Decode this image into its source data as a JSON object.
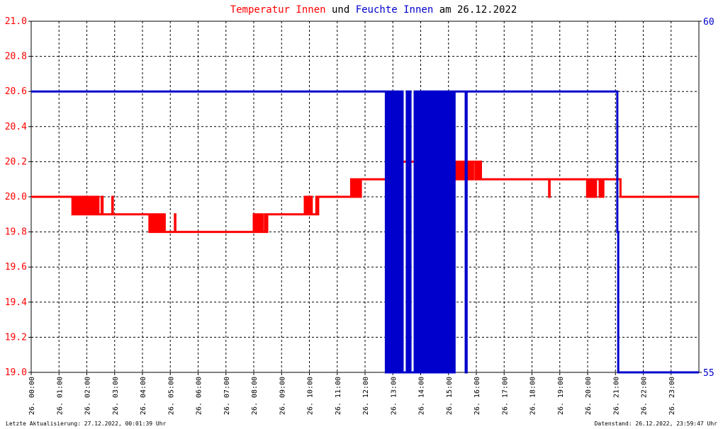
{
  "title": {
    "part1": "Temperatur Innen",
    "part2": "und",
    "part3": "Feuchte Innen",
    "part4": "am 26.12.2022"
  },
  "footer": {
    "left": "Letzte Aktualisierung: 27.12.2022, 00:01:39 Uhr",
    "right": "Datenstand: 26.12.2022, 23:59:47 Uhr"
  },
  "colors": {
    "temperature": "#ff0000",
    "humidity": "#0000cc",
    "background": "#ffffff",
    "grid": "#000000"
  },
  "chart_data": {
    "type": "line",
    "grid": true,
    "x_range": [
      "26.12.2022 00:00",
      "27.12.2022 00:00"
    ],
    "x_tick_labels": [
      "26. 00:00",
      "26. 01:00",
      "26. 02:00",
      "26. 03:00",
      "26. 04:00",
      "26. 05:00",
      "26. 06:00",
      "26. 07:00",
      "26. 08:00",
      "26. 09:00",
      "26. 10:00",
      "26. 11:00",
      "26. 12:00",
      "26. 13:00",
      "26. 14:00",
      "26. 15:00",
      "26. 16:00",
      "26. 17:00",
      "26. 18:00",
      "26. 19:00",
      "26. 20:00",
      "26. 21:00",
      "26. 22:00",
      "26. 23:00"
    ],
    "y_left": {
      "range": [
        19.0,
        21.0
      ],
      "tick_labels": [
        "21.0",
        "20.8",
        "20.6",
        "20.4",
        "20.2",
        "20.0",
        "19.8",
        "19.6",
        "19.4",
        "19.2",
        "19.0"
      ]
    },
    "y_right": {
      "range": [
        55,
        60
      ],
      "tick_labels": [
        "60",
        "55"
      ]
    },
    "series": [
      {
        "name": "Temperatur Innen",
        "axis": "left",
        "points": [
          [
            "00:00",
            20.0
          ],
          [
            "01:28",
            20.0
          ],
          [
            "01:29",
            19.9
          ],
          [
            "01:31",
            20.0
          ],
          [
            "01:33",
            19.9
          ],
          [
            "01:36",
            20.0
          ],
          [
            "01:39",
            19.9
          ],
          [
            "01:42",
            20.0
          ],
          [
            "01:45",
            19.9
          ],
          [
            "01:48",
            20.0
          ],
          [
            "01:51",
            19.9
          ],
          [
            "01:54",
            20.0
          ],
          [
            "01:57",
            19.9
          ],
          [
            "02:00",
            20.0
          ],
          [
            "02:03",
            19.9
          ],
          [
            "02:06",
            20.0
          ],
          [
            "02:09",
            19.9
          ],
          [
            "02:13",
            20.0
          ],
          [
            "02:17",
            19.9
          ],
          [
            "02:21",
            20.0
          ],
          [
            "02:25",
            19.9
          ],
          [
            "02:32",
            20.0
          ],
          [
            "02:34",
            19.9
          ],
          [
            "02:55",
            20.0
          ],
          [
            "02:56",
            19.9
          ],
          [
            "04:13",
            19.9
          ],
          [
            "04:15",
            19.8
          ],
          [
            "04:17",
            19.9
          ],
          [
            "04:19",
            19.8
          ],
          [
            "04:22",
            19.9
          ],
          [
            "04:25",
            19.8
          ],
          [
            "04:28",
            19.9
          ],
          [
            "04:31",
            19.8
          ],
          [
            "04:34",
            19.9
          ],
          [
            "04:37",
            19.8
          ],
          [
            "04:40",
            19.9
          ],
          [
            "04:43",
            19.8
          ],
          [
            "04:46",
            19.9
          ],
          [
            "04:48",
            19.8
          ],
          [
            "05:10",
            19.9
          ],
          [
            "05:11",
            19.8
          ],
          [
            "07:59",
            19.8
          ],
          [
            "08:00",
            19.9
          ],
          [
            "08:02",
            19.8
          ],
          [
            "08:04",
            19.9
          ],
          [
            "08:07",
            19.8
          ],
          [
            "08:10",
            19.9
          ],
          [
            "08:13",
            19.8
          ],
          [
            "08:16",
            19.9
          ],
          [
            "08:19",
            19.8
          ],
          [
            "08:24",
            19.9
          ],
          [
            "08:27",
            19.8
          ],
          [
            "08:29",
            19.9
          ],
          [
            "09:49",
            19.9
          ],
          [
            "09:50",
            20.0
          ],
          [
            "09:52",
            19.9
          ],
          [
            "09:55",
            20.0
          ],
          [
            "09:58",
            19.9
          ],
          [
            "10:01",
            20.0
          ],
          [
            "10:05",
            19.9
          ],
          [
            "10:15",
            20.0
          ],
          [
            "10:17",
            19.9
          ],
          [
            "10:19",
            20.0
          ],
          [
            "11:29",
            20.0
          ],
          [
            "11:30",
            20.1
          ],
          [
            "11:32",
            20.0
          ],
          [
            "11:35",
            20.1
          ],
          [
            "11:38",
            20.0
          ],
          [
            "11:41",
            20.1
          ],
          [
            "11:44",
            20.0
          ],
          [
            "11:47",
            20.1
          ],
          [
            "11:49",
            20.0
          ],
          [
            "11:51",
            20.1
          ],
          [
            "12:48",
            20.1
          ],
          [
            "12:49",
            20.2
          ],
          [
            "12:51",
            20.1
          ],
          [
            "12:54",
            20.2
          ],
          [
            "12:57",
            20.1
          ],
          [
            "13:00",
            20.2
          ],
          [
            "13:03",
            20.1
          ],
          [
            "13:05",
            20.2
          ],
          [
            "15:08",
            20.2
          ],
          [
            "15:09",
            20.1
          ],
          [
            "15:11",
            20.2
          ],
          [
            "15:14",
            20.1
          ],
          [
            "15:17",
            20.2
          ],
          [
            "15:20",
            20.1
          ],
          [
            "15:23",
            20.2
          ],
          [
            "15:26",
            20.1
          ],
          [
            "15:29",
            20.2
          ],
          [
            "15:32",
            20.1
          ],
          [
            "15:35",
            20.2
          ],
          [
            "15:38",
            20.1
          ],
          [
            "15:41",
            20.2
          ],
          [
            "15:44",
            20.1
          ],
          [
            "15:47",
            20.2
          ],
          [
            "15:51",
            20.1
          ],
          [
            "15:53",
            20.2
          ],
          [
            "15:58",
            20.1
          ],
          [
            "16:01",
            20.2
          ],
          [
            "16:04",
            20.1
          ],
          [
            "16:07",
            20.2
          ],
          [
            "16:10",
            20.1
          ],
          [
            "18:36",
            20.1
          ],
          [
            "18:37",
            20.0
          ],
          [
            "18:38",
            20.1
          ],
          [
            "19:58",
            20.1
          ],
          [
            "19:59",
            20.0
          ],
          [
            "20:00",
            20.1
          ],
          [
            "20:03",
            20.0
          ],
          [
            "20:06",
            20.1
          ],
          [
            "20:10",
            20.0
          ],
          [
            "20:13",
            20.1
          ],
          [
            "20:17",
            20.0
          ],
          [
            "20:18",
            20.1
          ],
          [
            "20:26",
            20.0
          ],
          [
            "20:28",
            20.1
          ],
          [
            "20:32",
            20.0
          ],
          [
            "20:34",
            20.1
          ],
          [
            "21:10",
            20.1
          ],
          [
            "21:11",
            20.0
          ],
          [
            "23:59",
            20.0
          ]
        ]
      },
      {
        "name": "Feuchte Innen",
        "axis": "right",
        "points": [
          [
            "00:00",
            59
          ],
          [
            "12:44",
            59
          ],
          [
            "12:45",
            55
          ],
          [
            "12:47",
            59
          ],
          [
            "12:49",
            55
          ],
          [
            "12:51",
            59
          ],
          [
            "12:53",
            55
          ],
          [
            "12:55",
            59
          ],
          [
            "12:57",
            55
          ],
          [
            "12:58",
            59
          ],
          [
            "13:00",
            55
          ],
          [
            "13:02",
            59
          ],
          [
            "13:03",
            55
          ],
          [
            "13:05",
            59
          ],
          [
            "13:07",
            55
          ],
          [
            "13:09",
            59
          ],
          [
            "13:11",
            55
          ],
          [
            "13:14",
            59
          ],
          [
            "13:17",
            55
          ],
          [
            "13:19",
            59
          ],
          [
            "13:21",
            55
          ],
          [
            "13:30",
            59
          ],
          [
            "13:32",
            55
          ],
          [
            "13:36",
            59
          ],
          [
            "13:38",
            55
          ],
          [
            "13:47",
            59
          ],
          [
            "13:49",
            55
          ],
          [
            "13:53",
            59
          ],
          [
            "13:55",
            55
          ],
          [
            "13:58",
            59
          ],
          [
            "14:00",
            55
          ],
          [
            "14:03",
            59
          ],
          [
            "14:05",
            55
          ],
          [
            "14:07",
            59
          ],
          [
            "14:09",
            55
          ],
          [
            "14:11",
            59
          ],
          [
            "14:13",
            55
          ],
          [
            "14:15",
            59
          ],
          [
            "14:17",
            55
          ],
          [
            "14:19",
            59
          ],
          [
            "14:21",
            55
          ],
          [
            "14:23",
            59
          ],
          [
            "14:25",
            55
          ],
          [
            "14:27",
            59
          ],
          [
            "14:29",
            55
          ],
          [
            "14:31",
            59
          ],
          [
            "14:33",
            55
          ],
          [
            "14:36",
            59
          ],
          [
            "14:38",
            55
          ],
          [
            "14:40",
            59
          ],
          [
            "14:42",
            55
          ],
          [
            "14:44",
            59
          ],
          [
            "14:46",
            55
          ],
          [
            "14:48",
            59
          ],
          [
            "14:50",
            55
          ],
          [
            "14:53",
            59
          ],
          [
            "14:55",
            55
          ],
          [
            "14:58",
            59
          ],
          [
            "15:00",
            55
          ],
          [
            "15:03",
            59
          ],
          [
            "15:05",
            55
          ],
          [
            "15:08",
            59
          ],
          [
            "15:10",
            55
          ],
          [
            "15:13",
            59
          ],
          [
            "15:35",
            59
          ],
          [
            "15:37",
            55
          ],
          [
            "15:39",
            59
          ],
          [
            "21:02",
            59
          ],
          [
            "21:04",
            57
          ],
          [
            "21:06",
            55
          ],
          [
            "23:59",
            55
          ]
        ]
      }
    ]
  }
}
